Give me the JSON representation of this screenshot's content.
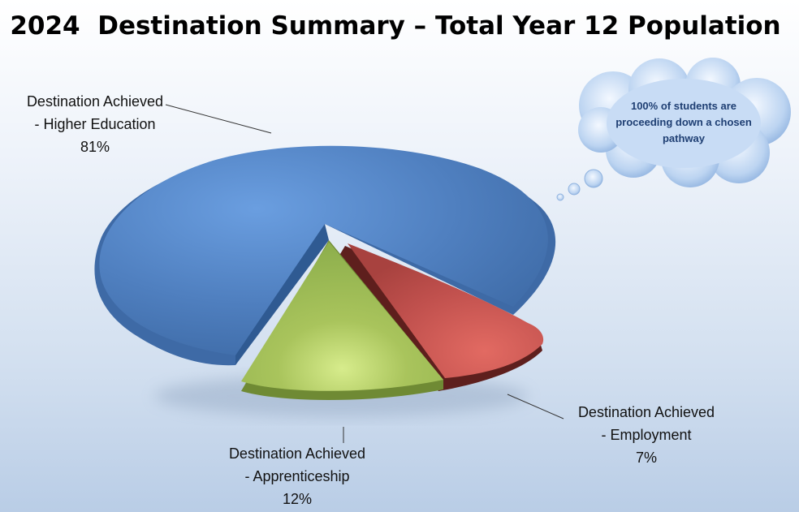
{
  "chart_data": {
    "type": "pie",
    "title": "2024  Destination Summary – Total Year 12 Population",
    "slices": [
      {
        "label_line1": "Destination Achieved",
        "label_line2": "- Higher Education",
        "value": 81,
        "percent_label": "81%",
        "color": "#4f81bd"
      },
      {
        "label_line1": "Destination Achieved",
        "label_line2": "- Employment",
        "value": 7,
        "percent_label": "7%",
        "color": "#c0504d"
      },
      {
        "label_line1": "Destination Achieved",
        "label_line2": "- Apprenticeship",
        "value": 12,
        "percent_label": "12%",
        "color": "#9bbb59"
      }
    ],
    "callout": "100% of students are proceeding down a chosen pathway"
  }
}
